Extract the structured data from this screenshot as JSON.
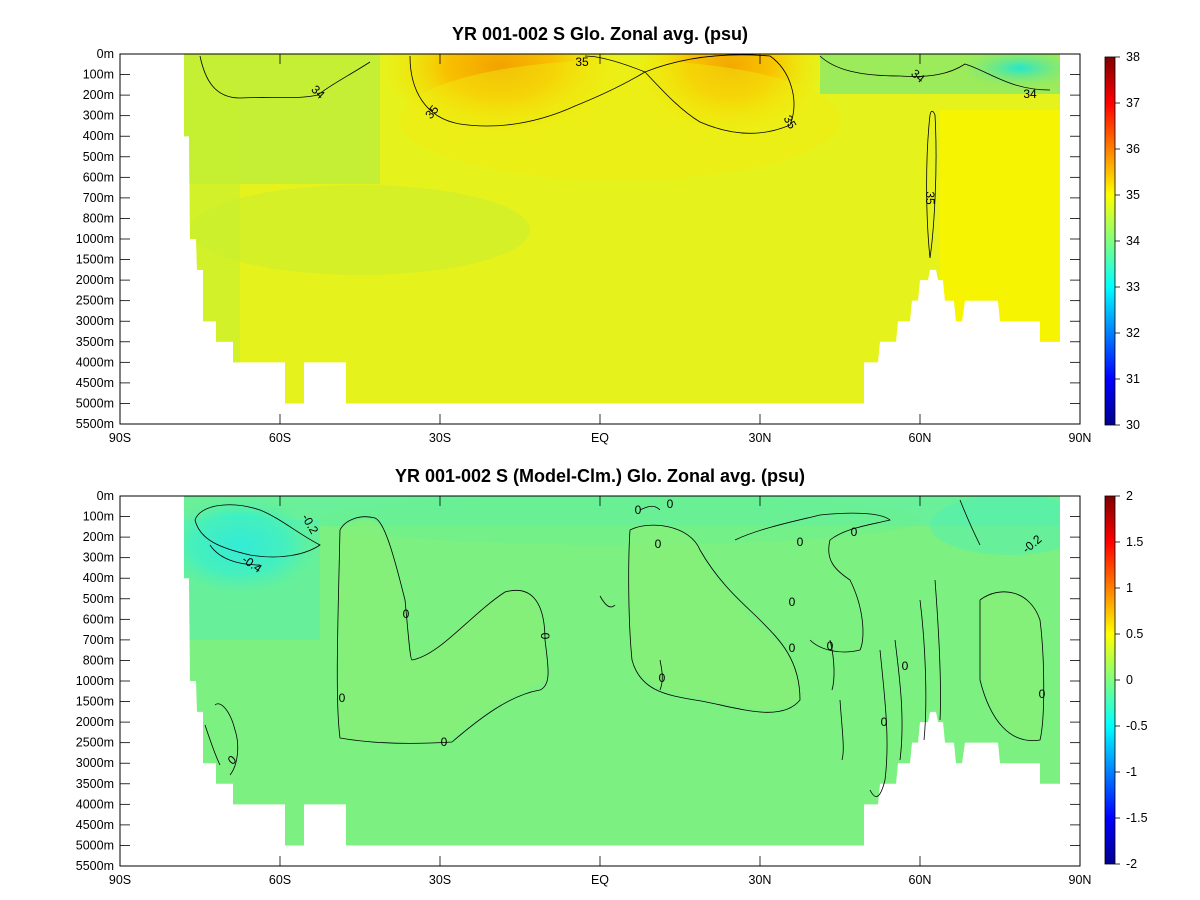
{
  "chart_data": [
    {
      "type": "heatmap",
      "title": "YR 001-002 S Glo. Zonal avg. (psu)",
      "x_ticks": [
        "90S",
        "60S",
        "30S",
        "EQ",
        "30N",
        "60N",
        "90N"
      ],
      "y_ticks": [
        "0m",
        "100m",
        "200m",
        "300m",
        "400m",
        "500m",
        "600m",
        "700m",
        "800m",
        "1000m",
        "1500m",
        "2000m",
        "2500m",
        "3000m",
        "3500m",
        "4000m",
        "4500m",
        "5000m",
        "5500m"
      ],
      "colorbar": {
        "min": 30,
        "max": 38,
        "ticks": [
          "38",
          "37",
          "36",
          "35",
          "34",
          "33",
          "32",
          "31",
          "30"
        ]
      },
      "contour_labels": [
        "35",
        "35",
        "34",
        "35",
        "34",
        "34",
        "35",
        "35"
      ]
    },
    {
      "type": "heatmap",
      "title": "YR 001-002 S (Model-Clm.) Glo. Zonal avg. (psu)",
      "x_ticks": [
        "90S",
        "60S",
        "30S",
        "EQ",
        "30N",
        "60N",
        "90N"
      ],
      "y_ticks": [
        "0m",
        "100m",
        "200m",
        "300m",
        "400m",
        "500m",
        "600m",
        "700m",
        "800m",
        "1000m",
        "1500m",
        "2000m",
        "2500m",
        "3000m",
        "3500m",
        "4000m",
        "4500m",
        "5000m",
        "5500m"
      ],
      "colorbar": {
        "min": -2,
        "max": 2,
        "ticks": [
          "2",
          "1.5",
          "1",
          "0.5",
          "0",
          "-0.5",
          "-1",
          "-1.5",
          "-2"
        ]
      },
      "contour_labels": [
        "-0.2",
        "-0.4",
        "0",
        "0",
        "0",
        "0",
        "0",
        "0",
        "0",
        "0",
        "0",
        "0",
        "0",
        "0",
        "0",
        "0",
        "0",
        "0",
        "0",
        "-0.2"
      ]
    }
  ]
}
